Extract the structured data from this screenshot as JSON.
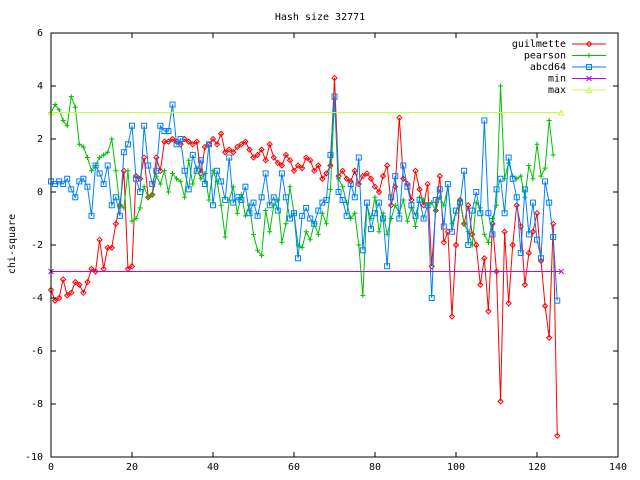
{
  "chart_data": {
    "type": "line",
    "title": "Hash size 32771",
    "xlabel": "",
    "ylabel": "chi-square",
    "xlim": [
      0,
      140
    ],
    "ylim": [
      -10,
      6
    ],
    "xticks": [
      0,
      20,
      40,
      60,
      80,
      100,
      120,
      140
    ],
    "yticks": [
      -10,
      -8,
      -6,
      -4,
      -2,
      0,
      2,
      4,
      6
    ],
    "grid": false,
    "legend_position": "top-right",
    "series": [
      {
        "name": "guilmette",
        "color": "#ff0000",
        "marker": "diamond",
        "values": [
          -3.7,
          -4.1,
          -4.0,
          -3.3,
          -3.9,
          -3.8,
          -3.4,
          -3.5,
          -3.8,
          -3.4,
          -2.9,
          -3.0,
          -1.8,
          -2.9,
          -2.1,
          -2.1,
          -1.2,
          -0.5,
          0.8,
          -2.9,
          -2.8,
          0.6,
          0.5,
          1.3,
          -0.2,
          -0.1,
          1.3,
          0.8,
          1.9,
          1.9,
          2.0,
          1.9,
          1.8,
          2.0,
          1.9,
          1.8,
          1.9,
          0.7,
          1.7,
          1.8,
          2.0,
          1.8,
          2.2,
          1.5,
          1.6,
          1.5,
          1.7,
          1.8,
          1.9,
          1.6,
          1.3,
          1.4,
          1.6,
          1.2,
          1.8,
          1.3,
          1.1,
          1.0,
          1.4,
          1.2,
          0.8,
          1.0,
          0.9,
          1.3,
          1.2,
          0.8,
          1.0,
          0.5,
          0.7,
          1.0,
          4.3,
          0.6,
          0.8,
          0.5,
          0.4,
          0.8,
          0.3,
          0.6,
          0.7,
          0.5,
          0.2,
          0.0,
          0.6,
          1.0,
          -0.5,
          0.2,
          2.8,
          0.5,
          0.3,
          -0.3,
          0.8,
          0.1,
          -0.5,
          0.3,
          -2.8,
          -0.7,
          0.6,
          -1.9,
          -1.5,
          -4.7,
          -2.0,
          -0.3,
          -1.2,
          -0.5,
          -1.6,
          -2.0,
          -3.5,
          -2.5,
          -4.5,
          -1.2,
          -3.0,
          -7.9,
          -1.5,
          -4.2,
          -2.0,
          -0.5,
          -1.3,
          -3.5,
          -2.3,
          -1.5,
          -0.8,
          -2.6,
          -4.3,
          -5.5,
          -1.2,
          -9.2
        ]
      },
      {
        "name": "pearson",
        "color": "#00c000",
        "marker": "plus",
        "values": [
          3.0,
          3.3,
          3.1,
          2.7,
          2.5,
          3.6,
          3.2,
          1.8,
          1.7,
          1.3,
          0.8,
          1.0,
          1.3,
          1.4,
          1.5,
          2.0,
          0.8,
          -0.5,
          -0.6,
          0.8,
          -1.1,
          -1.0,
          -0.6,
          0.2,
          -0.2,
          -0.1,
          0.6,
          0.3,
          0.8,
          0.0,
          0.7,
          0.5,
          0.4,
          -0.2,
          1.2,
          0.3,
          0.9,
          0.5,
          0.7,
          -0.3,
          0.8,
          0.4,
          -0.5,
          -1.7,
          -0.3,
          0.2,
          -0.8,
          -0.1,
          -0.9,
          -0.5,
          -1.6,
          -2.2,
          -2.4,
          -0.7,
          -1.5,
          -0.5,
          -0.3,
          -1.9,
          -1.2,
          0.2,
          -0.8,
          -2.0,
          -2.1,
          -1.5,
          -1.8,
          -1.2,
          -1.6,
          -0.8,
          -1.2,
          0.1,
          3.5,
          0.5,
          0.2,
          -0.4,
          -1.0,
          -0.8,
          -2.0,
          -3.9,
          -0.5,
          -1.0,
          -0.2,
          -1.5,
          -0.8,
          -1.6,
          -1.0,
          -0.5,
          -0.8,
          -0.3,
          -1.1,
          -0.6,
          -1.3,
          -0.2,
          -0.3,
          -0.5,
          -0.4,
          -0.7,
          -0.2,
          -0.5,
          0.2,
          -1.2,
          -0.8,
          -0.3,
          -1.2,
          -1.5,
          -2.0,
          -0.4,
          -0.6,
          -1.6,
          -1.9,
          -1.0,
          -0.5,
          4.0,
          0.5,
          1.1,
          0.6,
          0.5,
          0.6,
          -0.2,
          1.0,
          0.5,
          1.8,
          0.6,
          0.9,
          2.7,
          1.4
        ]
      },
      {
        "name": "abcd64",
        "color": "#0080ff",
        "marker": "square",
        "values": [
          0.4,
          0.3,
          0.4,
          0.3,
          0.5,
          0.1,
          -0.2,
          0.4,
          0.5,
          0.2,
          -0.9,
          1.0,
          0.7,
          0.3,
          1.0,
          -0.5,
          -0.2,
          -0.9,
          1.5,
          1.8,
          2.5,
          0.5,
          0.0,
          2.5,
          1.0,
          0.3,
          0.8,
          2.5,
          2.3,
          2.3,
          3.3,
          1.8,
          2.0,
          0.8,
          0.1,
          1.4,
          0.8,
          1.2,
          0.3,
          1.8,
          -0.5,
          0.8,
          0.4,
          -0.3,
          1.3,
          -0.4,
          -0.2,
          -0.3,
          0.2,
          -0.8,
          -0.4,
          -0.9,
          -0.2,
          0.7,
          -0.5,
          -0.2,
          -0.7,
          0.7,
          -0.2,
          -1.0,
          -0.8,
          -2.5,
          -0.9,
          -0.6,
          -1.0,
          -1.2,
          -0.7,
          -0.4,
          -0.3,
          1.4,
          3.6,
          0.0,
          -0.3,
          -0.9,
          0.3,
          -0.2,
          1.3,
          -2.2,
          -0.4,
          -1.4,
          -0.8,
          -0.4,
          -1.0,
          -2.8,
          -0.2,
          0.6,
          -1.0,
          1.0,
          0.2,
          -0.5,
          -0.9,
          -0.3,
          -1.0,
          -0.5,
          -4.0,
          -0.3,
          0.1,
          -1.3,
          0.3,
          -1.5,
          -0.7,
          -0.4,
          0.8,
          -2.0,
          -0.7,
          0.0,
          -0.8,
          2.7,
          -0.8,
          -1.6,
          0.1,
          0.5,
          -0.8,
          1.3,
          0.5,
          -0.2,
          -2.3,
          0.1,
          -1.6,
          -0.4,
          -1.8,
          -2.5,
          0.4,
          -0.4,
          -1.7,
          -4.1
        ]
      },
      {
        "name": "min",
        "color": "#c000ff",
        "marker": "x",
        "x": [
          0,
          126
        ],
        "values": [
          -3.0,
          -3.0
        ]
      },
      {
        "name": "max",
        "color": "#c0ff40",
        "marker": "triangle",
        "x": [
          0,
          126
        ],
        "values": [
          3.0,
          3.0
        ]
      }
    ]
  }
}
